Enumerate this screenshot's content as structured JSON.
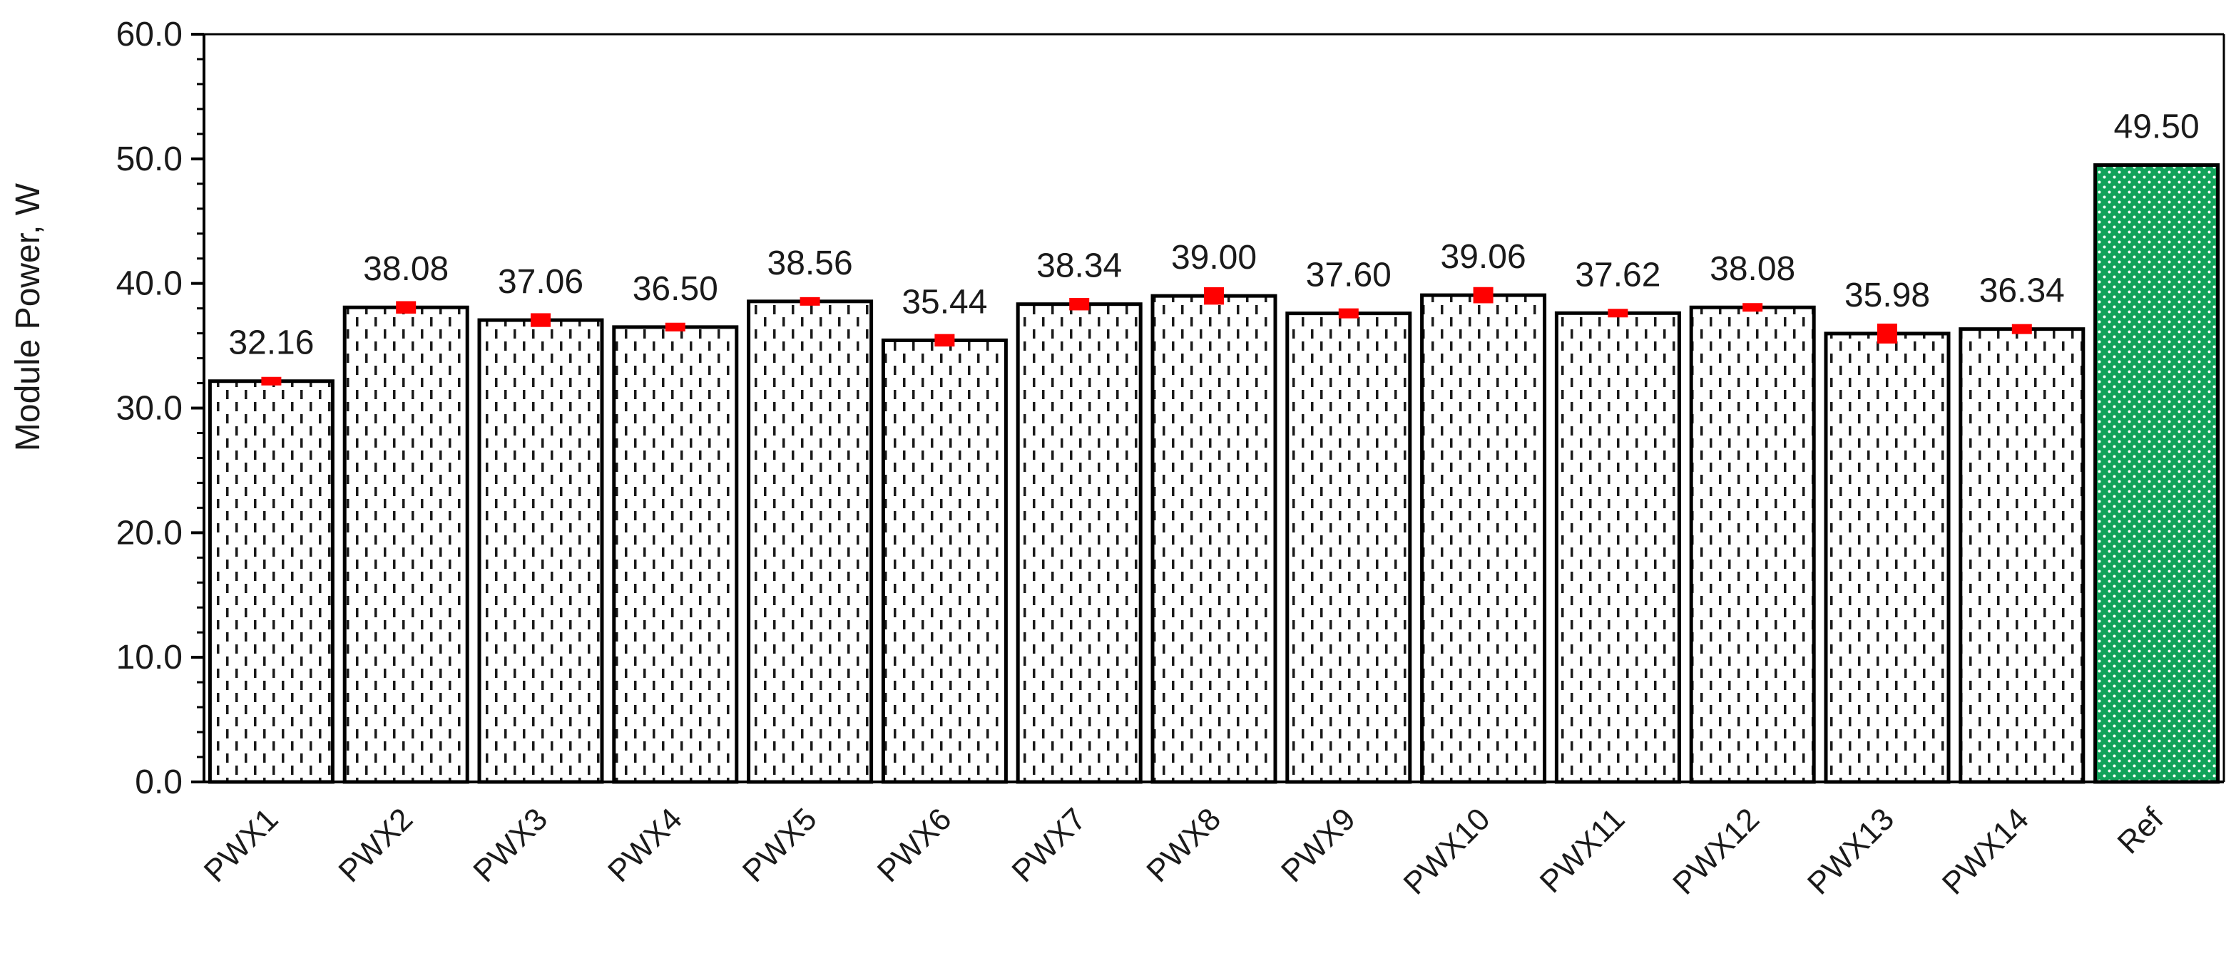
{
  "chart_data": {
    "type": "bar",
    "title": "",
    "xlabel": "",
    "ylabel": "Module Power, W",
    "ylim": [
      0,
      60
    ],
    "y_major_step": 10,
    "y_minor_step": 2,
    "y_tick_labels": [
      "0.0",
      "10.0",
      "20.0",
      "30.0",
      "40.0",
      "50.0",
      "60.0"
    ],
    "grid": false,
    "legend": "none",
    "categories": [
      "PWX1",
      "PWX2",
      "PWX3",
      "PWX4",
      "PWX5",
      "PWX6",
      "PWX7",
      "PWX8",
      "PWX9",
      "PWX10",
      "PWX11",
      "PWX12",
      "PWX13",
      "PWX14",
      "Ref"
    ],
    "values": [
      32.16,
      38.08,
      37.06,
      36.5,
      38.56,
      35.44,
      38.34,
      39.0,
      37.6,
      39.06,
      37.62,
      38.08,
      35.98,
      36.34,
      49.5
    ],
    "value_labels": [
      "32.16",
      "38.08",
      "37.06",
      "36.50",
      "38.56",
      "35.44",
      "38.34",
      "39.00",
      "37.60",
      "39.06",
      "37.62",
      "38.08",
      "35.98",
      "36.34",
      "49.50"
    ],
    "error_half_width": [
      0.25,
      0.5,
      0.55,
      0.35,
      0.3,
      0.5,
      0.5,
      0.7,
      0.4,
      0.65,
      0.3,
      0.3,
      0.8,
      0.4,
      0
    ],
    "bar_styles": [
      "dashed-pattern",
      "dashed-pattern",
      "dashed-pattern",
      "dashed-pattern",
      "dashed-pattern",
      "dashed-pattern",
      "dashed-pattern",
      "dashed-pattern",
      "dashed-pattern",
      "dashed-pattern",
      "dashed-pattern",
      "dashed-pattern",
      "dashed-pattern",
      "dashed-pattern",
      "green-dotted"
    ],
    "colors": {
      "pattern_bar_fill": "#ffffff",
      "pattern_dash": "#1a1a1a",
      "ref_bar_fill": "#11a35a",
      "ref_dots": "#ffffff",
      "error_bar": "#ff0000",
      "outline": "#000000",
      "text": "#1a1a1a"
    }
  }
}
